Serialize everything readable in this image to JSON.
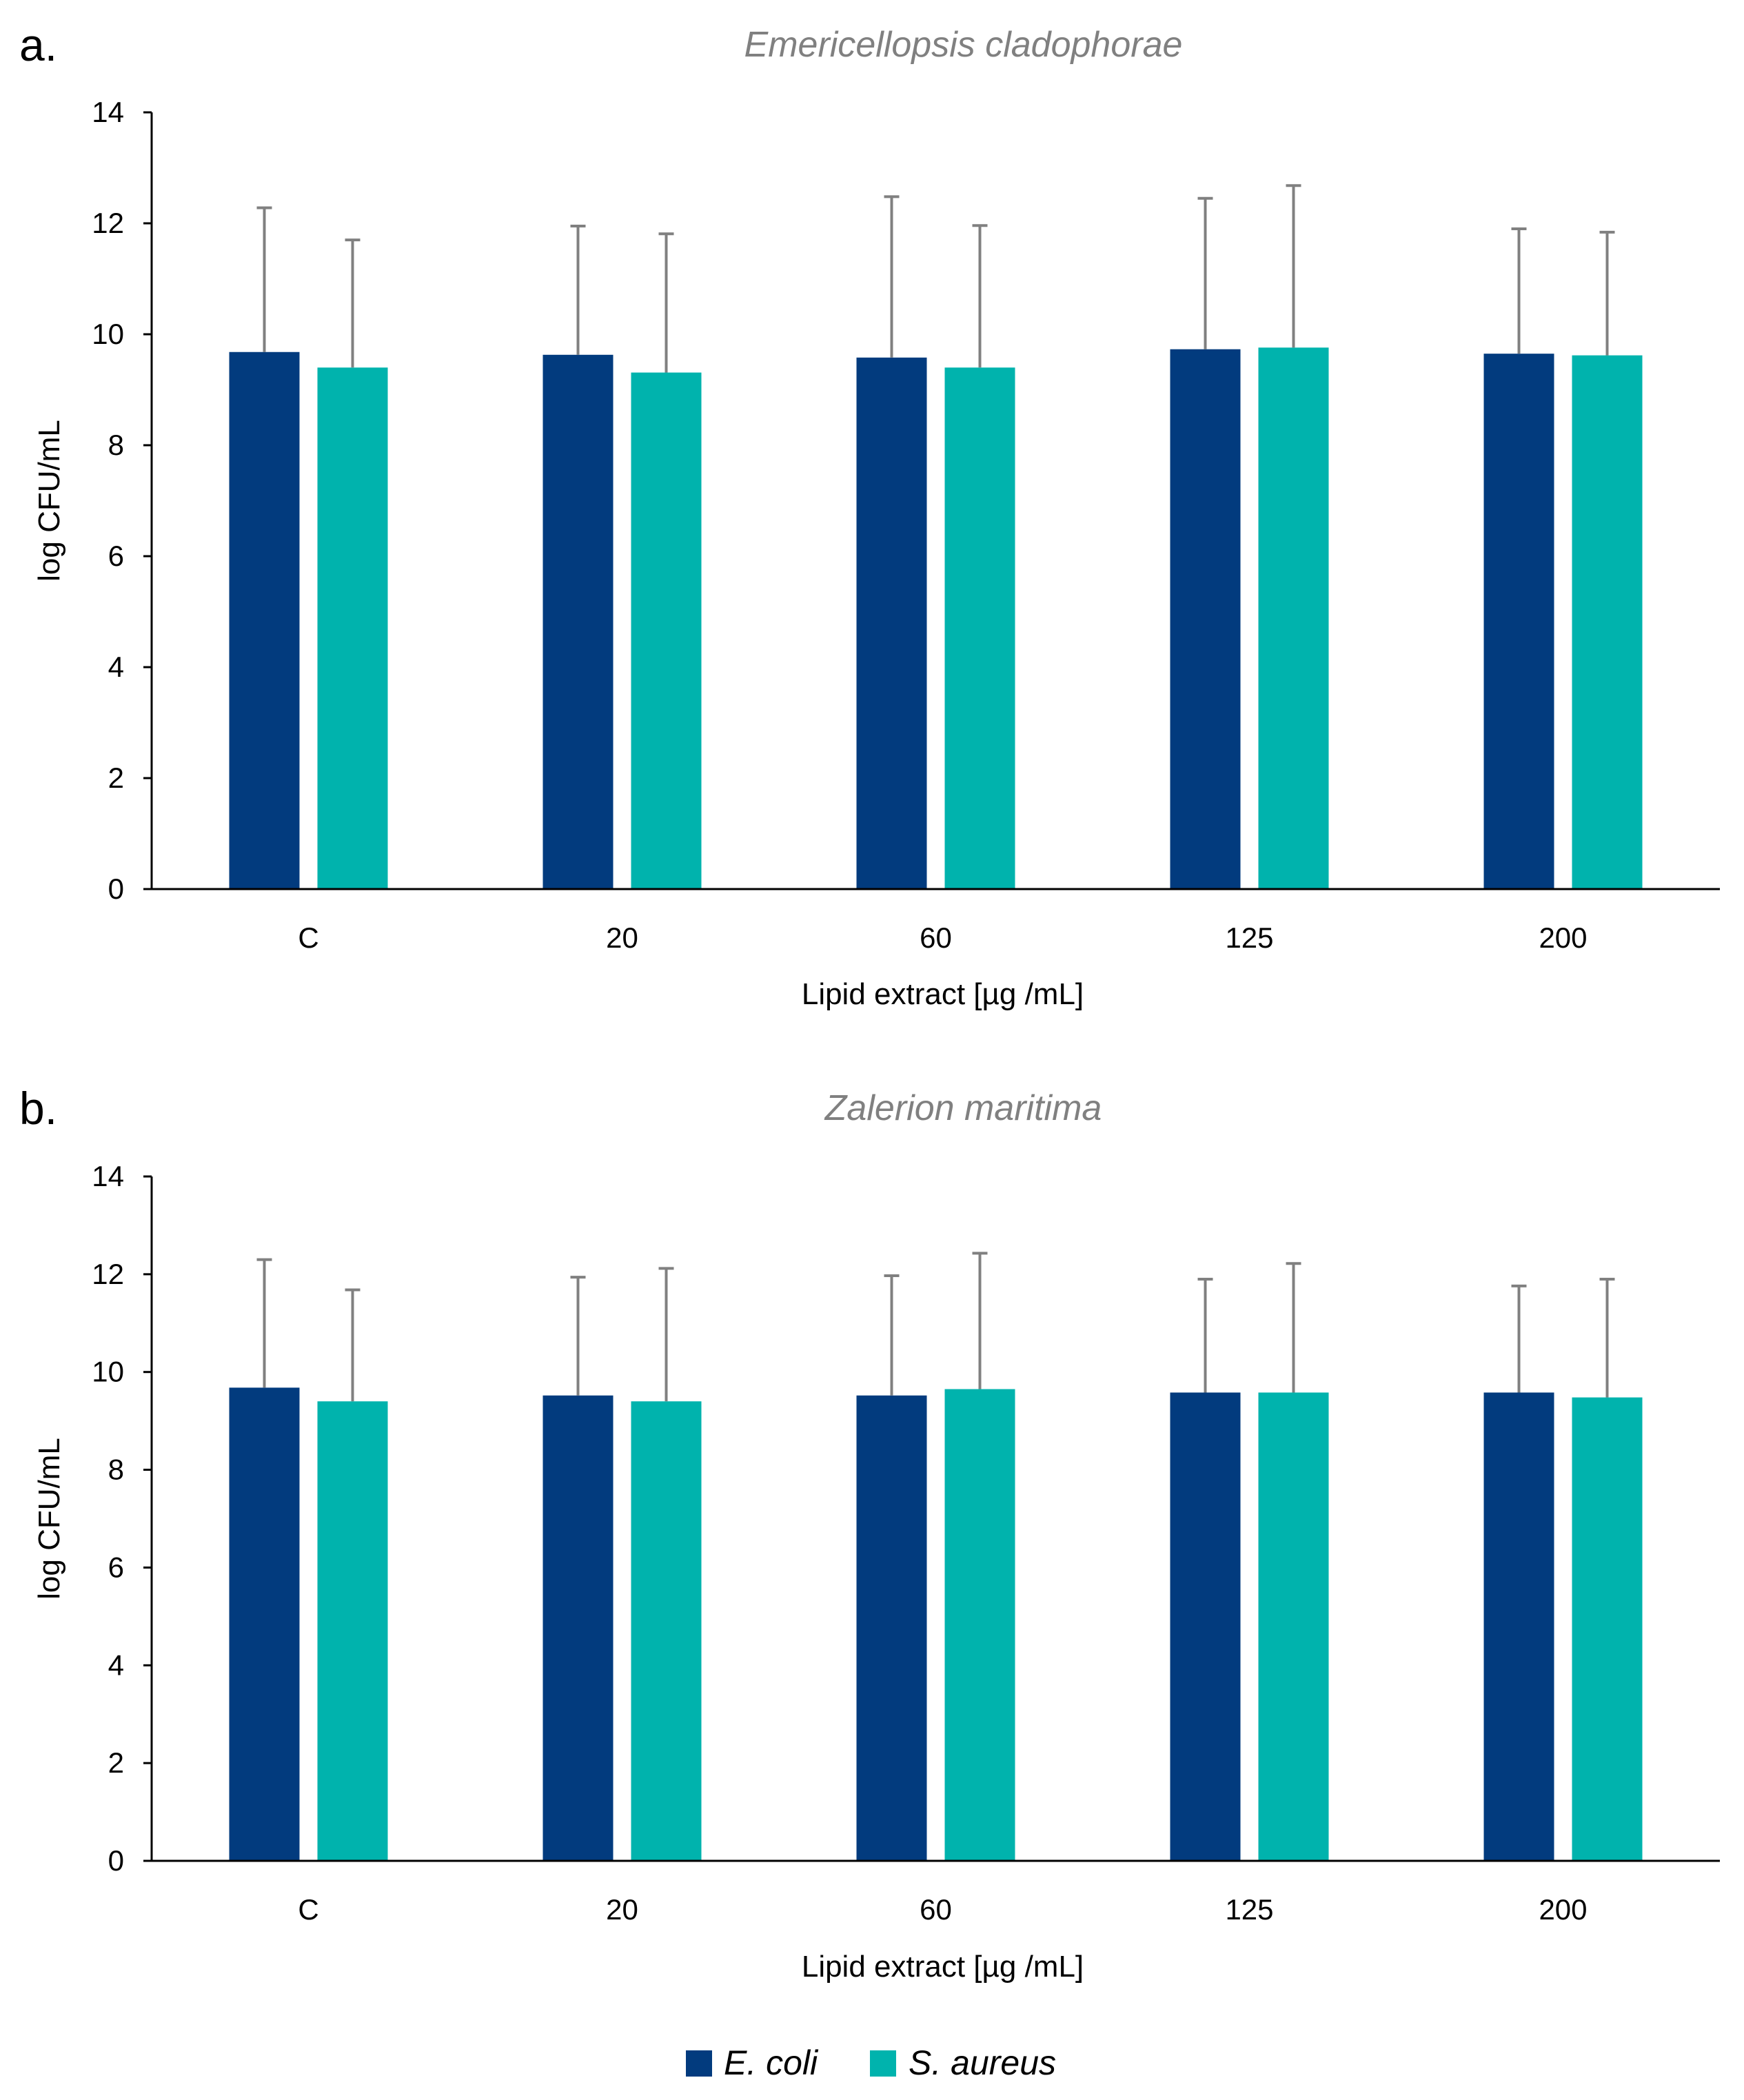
{
  "legend": {
    "items": [
      {
        "label": "E. coli",
        "color": "#023b7e"
      },
      {
        "label": "S. aureus",
        "color": "#00b3ad"
      }
    ]
  },
  "error_bar_color": "#808080",
  "chart_data": [
    {
      "type": "bar",
      "panel": "a.",
      "title": "Emericellopsis cladophorae",
      "xlabel": "Lipid extract [µg /mL]",
      "ylabel": "log CFU/mL",
      "ylim": [
        0,
        14
      ],
      "yticks": [
        "0",
        "2",
        "4",
        "6",
        "8",
        "10",
        "12",
        "14"
      ],
      "categories": [
        "C",
        "20",
        "60",
        "125",
        "200"
      ],
      "series": [
        {
          "name": "E. coli",
          "values": [
            9.68,
            9.63,
            9.58,
            9.73,
            9.65
          ],
          "error": [
            2.6,
            2.32,
            2.9,
            2.72,
            2.25
          ]
        },
        {
          "name": "S. aureus",
          "values": [
            9.4,
            9.31,
            9.4,
            9.76,
            9.62
          ],
          "error": [
            2.3,
            2.5,
            2.56,
            2.92,
            2.22
          ]
        }
      ]
    },
    {
      "type": "bar",
      "panel": "b.",
      "title": "Zalerion maritima",
      "xlabel": "Lipid extract [µg /mL]",
      "ylabel": "log CFU/mL",
      "ylim": [
        0,
        14
      ],
      "yticks": [
        "0",
        "2",
        "4",
        "6",
        "8",
        "10",
        "12",
        "14"
      ],
      "categories": [
        "C",
        "20",
        "60",
        "125",
        "200"
      ],
      "series": [
        {
          "name": "E. coli",
          "values": [
            9.68,
            9.52,
            9.52,
            9.58,
            9.58
          ],
          "error": [
            2.62,
            2.42,
            2.45,
            2.32,
            2.18
          ]
        },
        {
          "name": "S. aureus",
          "values": [
            9.4,
            9.4,
            9.65,
            9.58,
            9.48
          ],
          "error": [
            2.28,
            2.72,
            2.78,
            2.64,
            2.42
          ]
        }
      ]
    }
  ]
}
